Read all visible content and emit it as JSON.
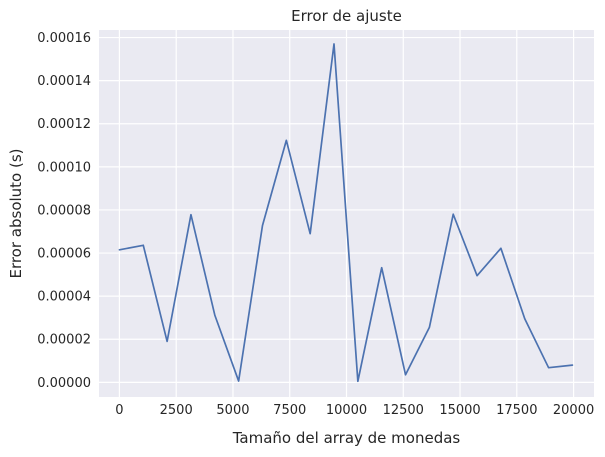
{
  "chart_data": {
    "type": "line",
    "title": "Error de ajuste",
    "xlabel": "Tamaño del array de monedas",
    "ylabel": "Error absoluto (s)",
    "xlim": [
      -900,
      20900
    ],
    "ylim": [
      -6.8e-06,
      0.0001635
    ],
    "xticks": [
      0,
      2500,
      5000,
      7500,
      10000,
      12500,
      15000,
      17500,
      20000
    ],
    "xtick_labels": [
      "0",
      "2500",
      "5000",
      "7500",
      "10000",
      "12500",
      "15000",
      "17500",
      "20000"
    ],
    "yticks": [
      0,
      2e-05,
      4e-05,
      6e-05,
      8e-05,
      0.0001,
      0.00012,
      0.00014,
      0.00016
    ],
    "ytick_labels": [
      "0.00000",
      "0.00002",
      "0.00004",
      "0.00006",
      "0.00008",
      "0.00010",
      "0.00012",
      "0.00014",
      "0.00016"
    ],
    "grid": true,
    "colors": {
      "background": "#eaeaf2",
      "grid": "#ffffff",
      "line": "#4c72b0",
      "text": "#262626"
    },
    "series": [
      {
        "x": [
          0,
          1050,
          2100,
          3150,
          4200,
          5250,
          6300,
          7350,
          8400,
          9450,
          10500,
          11550,
          12600,
          13650,
          14700,
          15750,
          16800,
          17850,
          18900,
          19950
        ],
        "values": [
          6.15e-05,
          6.36e-05,
          1.9e-05,
          7.78e-05,
          3.12e-05,
          6e-07,
          7.28e-05,
          0.0001123,
          6.9e-05,
          0.000157,
          5e-07,
          5.32e-05,
          3.5e-06,
          2.55e-05,
          7.8e-05,
          4.95e-05,
          6.22e-05,
          2.95e-05,
          6.8e-06,
          8e-06
        ]
      }
    ]
  }
}
